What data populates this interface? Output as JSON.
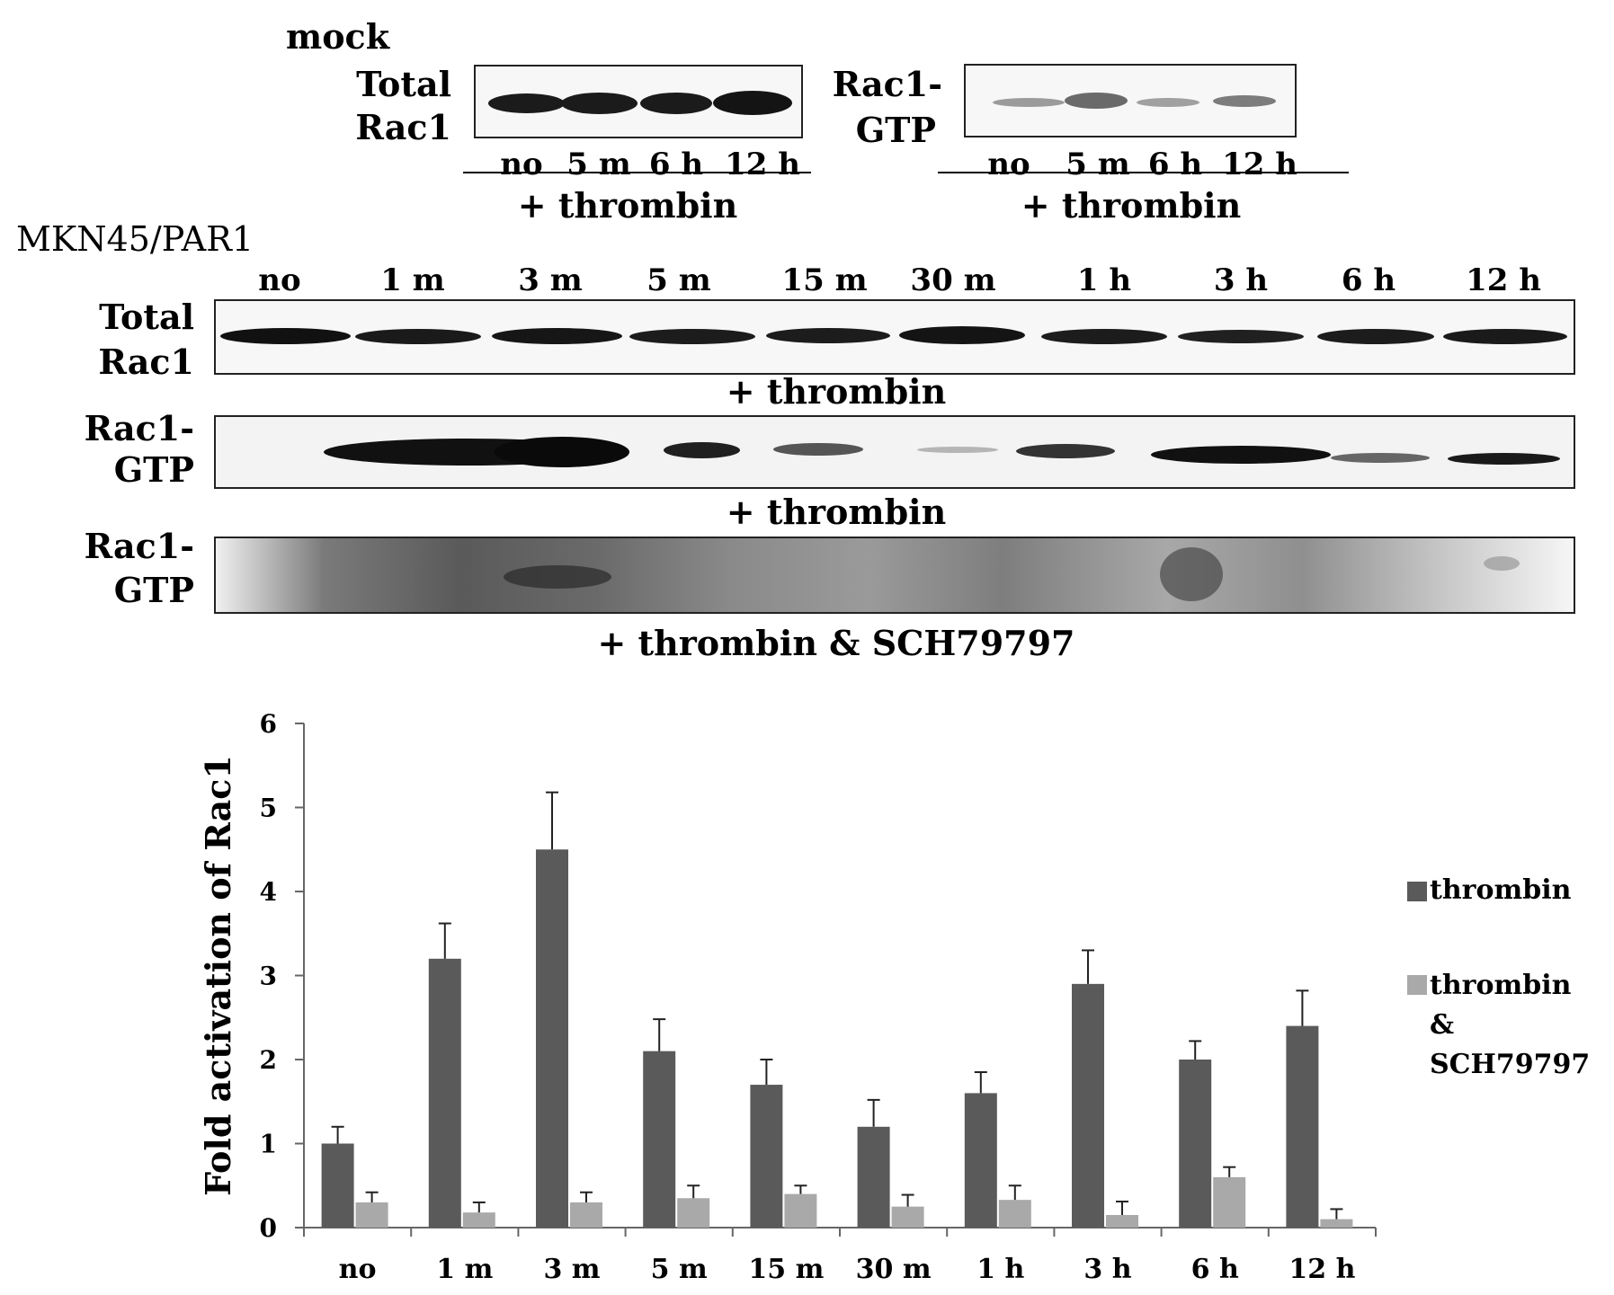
{
  "blots": {
    "mock": {
      "title": "mock",
      "total_label": [
        "Total",
        "Rac1"
      ],
      "gtp_label": [
        "Rac1-",
        "GTP"
      ],
      "lanes": [
        "no",
        "5 m",
        "6 h",
        "12 h"
      ],
      "treatment": "+ thrombin"
    },
    "par1": {
      "title": "MKN45/PAR1",
      "lanes": [
        "no",
        "1 m",
        "3 m",
        "5 m",
        "15 m",
        "30 m",
        "1 h",
        "3 h",
        "6 h",
        "12 h"
      ],
      "rows": [
        {
          "label": [
            "Total",
            "Rac1"
          ],
          "treatment": "+ thrombin"
        },
        {
          "label": [
            "Rac1-",
            "GTP"
          ],
          "treatment": "+ thrombin"
        },
        {
          "label": [
            "Rac1-",
            "GTP"
          ],
          "treatment": "+ thrombin & SCH79797"
        }
      ]
    }
  },
  "chart_data": {
    "type": "bar",
    "title": "",
    "xlabel": "",
    "ylabel": "Fold activation of Rac1",
    "categories": [
      "no",
      "1 m",
      "3 m",
      "5 m",
      "15 m",
      "30 m",
      "1 h",
      "3 h",
      "6 h",
      "12 h"
    ],
    "series": [
      {
        "name": "thrombin",
        "color": "#5a5a5a",
        "values": [
          1.0,
          3.2,
          4.5,
          2.1,
          1.7,
          1.2,
          1.6,
          2.9,
          2.0,
          2.4
        ],
        "errors": [
          0.2,
          0.42,
          0.68,
          0.38,
          0.3,
          0.32,
          0.25,
          0.4,
          0.22,
          0.42
        ]
      },
      {
        "name": "thrombin & SCH79797",
        "color": "#a9a9a9",
        "values": [
          0.3,
          0.18,
          0.3,
          0.35,
          0.4,
          0.25,
          0.33,
          0.15,
          0.6,
          0.1
        ],
        "errors": [
          0.12,
          0.12,
          0.12,
          0.15,
          0.1,
          0.14,
          0.17,
          0.16,
          0.12,
          0.12
        ]
      }
    ],
    "ylim": [
      0,
      6
    ],
    "yticks": [
      0,
      1,
      2,
      3,
      4,
      5,
      6
    ],
    "grid": false,
    "legend_position": "right"
  }
}
